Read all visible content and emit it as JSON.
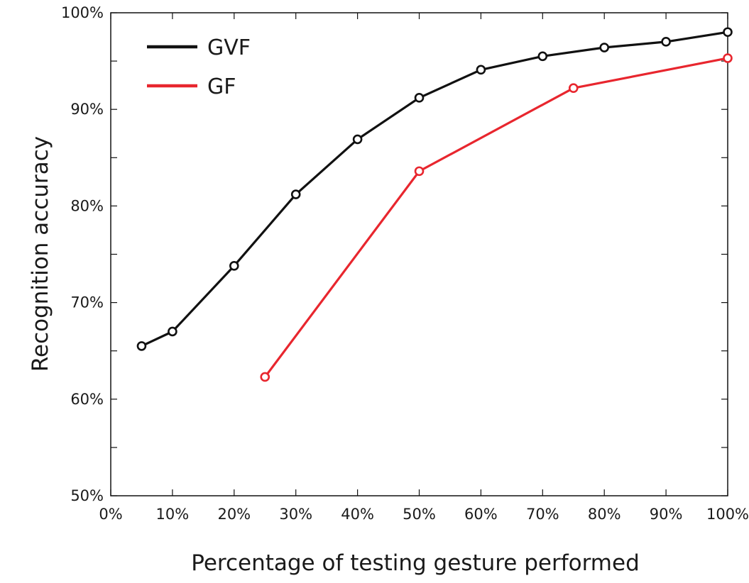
{
  "chart_data": {
    "type": "line",
    "title": "",
    "xlabel": "Percentage of testing gesture performed",
    "ylabel": "Recognition accuracy",
    "xlim": [
      0,
      100
    ],
    "ylim": [
      50,
      100
    ],
    "x_ticks": [
      0,
      10,
      20,
      30,
      40,
      50,
      60,
      70,
      80,
      90,
      100
    ],
    "x_tick_labels": [
      "0%",
      "10%",
      "20%",
      "30%",
      "40%",
      "50%",
      "60%",
      "70%",
      "80%",
      "90%",
      "100%"
    ],
    "y_ticks": [
      50,
      60,
      70,
      80,
      90,
      100
    ],
    "y_tick_labels": [
      "50%",
      "60%",
      "70%",
      "80%",
      "90%",
      "100%"
    ],
    "y_minor_ticks": [
      55,
      65,
      75,
      85,
      95
    ],
    "grid": false,
    "legend_position": "top-left",
    "series": [
      {
        "name": "GVF",
        "color": "#111111",
        "marker": "open-circle",
        "x": [
          5,
          10,
          20,
          30,
          40,
          50,
          60,
          70,
          80,
          90,
          100
        ],
        "y": [
          65.5,
          67.0,
          73.8,
          81.2,
          86.9,
          91.2,
          94.1,
          95.5,
          96.4,
          97.0,
          98.0
        ]
      },
      {
        "name": "GF",
        "color": "#e8262e",
        "marker": "open-circle",
        "x": [
          25,
          50,
          75,
          100
        ],
        "y": [
          62.3,
          83.6,
          92.2,
          95.3
        ]
      }
    ]
  }
}
